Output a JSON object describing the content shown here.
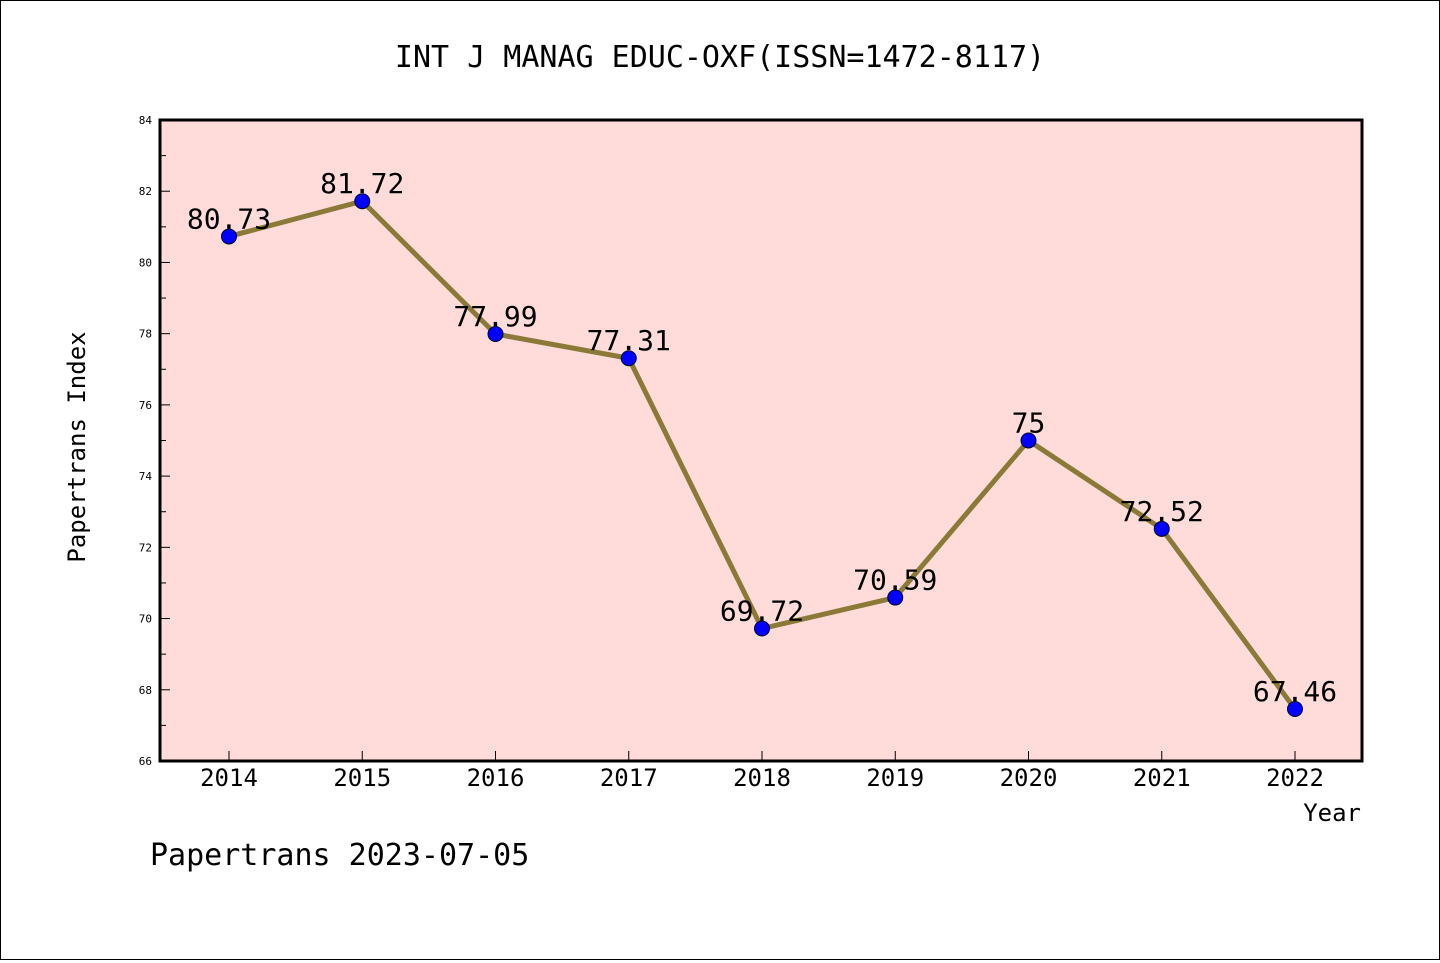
{
  "chart_data": {
    "type": "line",
    "title": "INT J MANAG EDUC-OXF(ISSN=1472-8117)",
    "xlabel": "Year",
    "ylabel": "Papertrans Index",
    "x": [
      "2014",
      "2015",
      "2016",
      "2017",
      "2018",
      "2019",
      "2020",
      "2021",
      "2022"
    ],
    "values": [
      80.73,
      81.72,
      77.99,
      77.31,
      69.72,
      70.59,
      75,
      72.52,
      67.46
    ],
    "data_labels": [
      "80.73",
      "81.72",
      "77.99",
      "77.31",
      "69.72",
      "70.59",
      "75",
      "72.52",
      "67.46"
    ],
    "ylim": [
      66,
      84
    ],
    "yticks": [
      "66",
      "68",
      "70",
      "72",
      "74",
      "76",
      "78",
      "80",
      "82",
      "84"
    ],
    "grid": false,
    "colors": {
      "plot_background": "#FFDCDA",
      "line": "#8B7A37",
      "marker": "#0000FF"
    }
  },
  "footer": {
    "text": "Papertrans 2023-07-05"
  }
}
